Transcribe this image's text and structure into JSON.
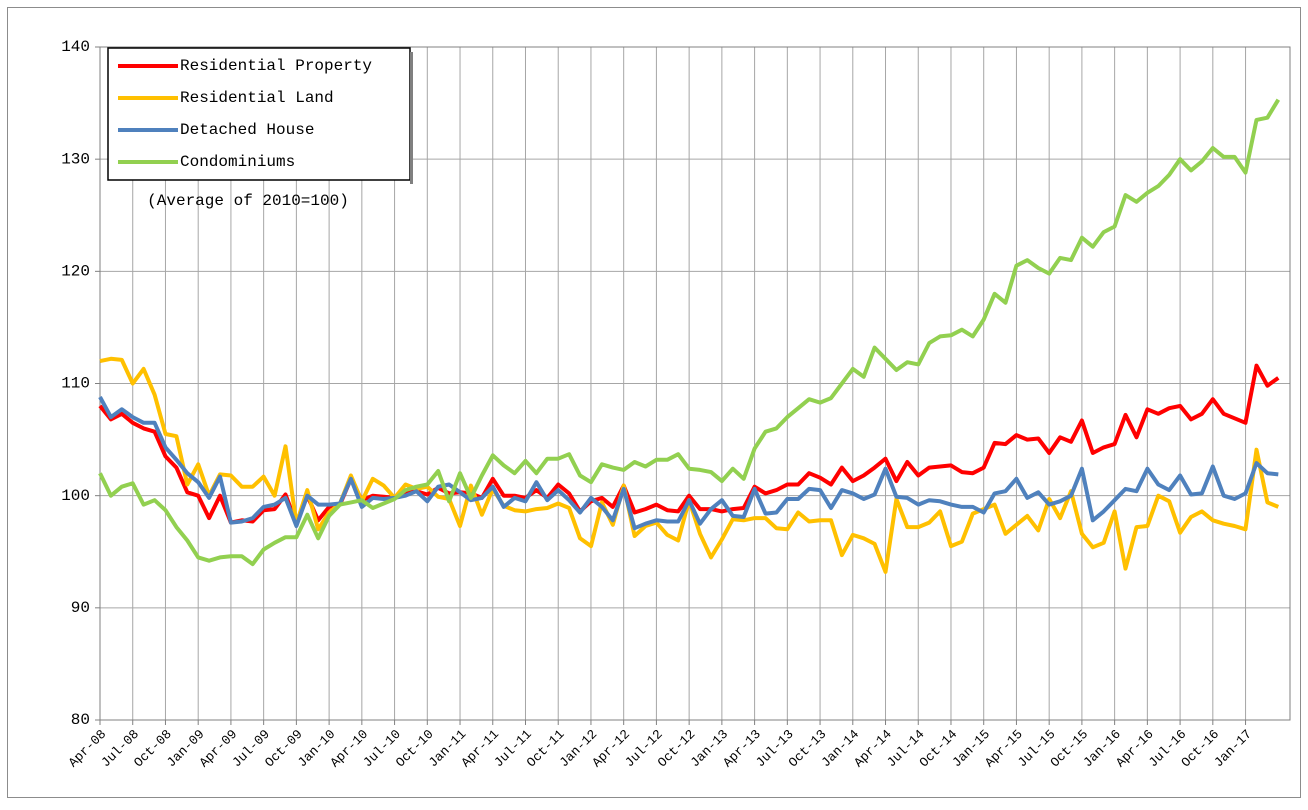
{
  "chart_data": {
    "type": "line",
    "annotations": [
      "(Average of 2010=100)"
    ],
    "categories": [
      "Apr-08",
      null,
      null,
      "Jul-08",
      null,
      null,
      "Oct-08",
      null,
      null,
      "Jan-09",
      null,
      null,
      "Apr-09",
      null,
      null,
      "Jul-09",
      null,
      null,
      "Oct-09",
      null,
      null,
      "Jan-10",
      null,
      null,
      "Apr-10",
      null,
      null,
      "Jul-10",
      null,
      null,
      "Oct-10",
      null,
      null,
      "Jan-11",
      null,
      null,
      "Apr-11",
      null,
      null,
      "Jul-11",
      null,
      null,
      "Oct-11",
      null,
      null,
      "Jan-12",
      null,
      null,
      "Apr-12",
      null,
      null,
      "Jul-12",
      null,
      null,
      "Oct-12",
      null,
      null,
      "Jan-13",
      null,
      null,
      "Apr-13",
      null,
      null,
      "Jul-13",
      null,
      null,
      "Oct-13",
      null,
      null,
      "Jan-14",
      null,
      null,
      "Apr-14",
      null,
      null,
      "Jul-14",
      null,
      null,
      "Oct-14",
      null,
      null,
      "Jan-15",
      null,
      null,
      "Apr-15",
      null,
      null,
      "Jul-15",
      null,
      null,
      "Oct-15",
      null,
      null,
      "Jan-16",
      null,
      null,
      "Apr-16",
      null,
      null,
      "Jul-16",
      null,
      null,
      "Oct-16",
      null,
      null,
      "Jan-17",
      null,
      null,
      null
    ],
    "series": [
      {
        "name": "Residential Property",
        "color": "#ff0000",
        "values": [
          108,
          106.8,
          107.3,
          106.5,
          106,
          105.7,
          103.5,
          102.5,
          100.3,
          100,
          98,
          100,
          97.6,
          97.8,
          97.7,
          98.7,
          98.8,
          100.1,
          97.5,
          100,
          97.8,
          99,
          99.2,
          101.5,
          99.6,
          100,
          99.9,
          99.8,
          100.3,
          100.4,
          100.1,
          100.7,
          100.2,
          100.3,
          100.2,
          99.8,
          101.5,
          100,
          100,
          99.8,
          100.5,
          99.8,
          101,
          100.2,
          98.6,
          99.5,
          99.8,
          99,
          100.9,
          98.5,
          98.8,
          99.2,
          98.7,
          98.6,
          100,
          98.8,
          98.8,
          98.6,
          98.8,
          98.9,
          100.8,
          100.2,
          100.5,
          101,
          101,
          102,
          101.6,
          101,
          102.5,
          101.3,
          101.8,
          102.5,
          103.3,
          101.3,
          103,
          101.8,
          102.5,
          102.6,
          102.7,
          102.1,
          102,
          102.5,
          104.7,
          104.6,
          105.4,
          105,
          105.1,
          103.8,
          105.2,
          104.8,
          106.7,
          103.8,
          104.3,
          104.6,
          107.2,
          105.2,
          107.7,
          107.3,
          107.8,
          108,
          106.8,
          107.3,
          108.6,
          107.3,
          106.9,
          106.5,
          111.6,
          109.8,
          110.5
        ]
      },
      {
        "name": "Residential Land",
        "color": "#ffc000",
        "values": [
          112,
          112.2,
          112.1,
          110,
          111.3,
          109,
          105.5,
          105.3,
          101,
          102.8,
          100,
          101.9,
          101.8,
          100.8,
          100.8,
          101.7,
          100,
          104.4,
          97.5,
          100.5,
          97,
          98.5,
          99.3,
          101.8,
          99.5,
          101.5,
          100.9,
          99.8,
          101,
          100.6,
          100.8,
          99.9,
          99.7,
          97.3,
          100.9,
          98.3,
          100.6,
          99.1,
          98.7,
          98.6,
          98.8,
          98.9,
          99.3,
          98.9,
          96.2,
          95.5,
          99.4,
          97.4,
          100.9,
          96.4,
          97.3,
          97.6,
          96.5,
          96,
          99.6,
          96.6,
          94.5,
          96.1,
          97.9,
          97.8,
          98,
          98,
          97.1,
          97,
          98.5,
          97.7,
          97.8,
          97.8,
          94.7,
          96.5,
          96.2,
          95.7,
          93.2,
          99.7,
          97.2,
          97.2,
          97.6,
          98.6,
          95.5,
          95.9,
          98.4,
          98.8,
          99.2,
          96.6,
          97.4,
          98.2,
          96.9,
          99.7,
          98,
          100.4,
          96.6,
          95.4,
          95.8,
          98.6,
          93.5,
          97.2,
          97.3,
          100,
          99.5,
          96.7,
          98.1,
          98.6,
          97.8,
          97.5,
          97.3,
          97,
          104.1,
          99.4,
          99
        ]
      },
      {
        "name": "Detached House",
        "color": "#4f81bd",
        "values": [
          108.8,
          107,
          107.7,
          107,
          106.5,
          106.5,
          104.3,
          103.2,
          102,
          101.2,
          99.8,
          101.7,
          97.6,
          97.7,
          98,
          99,
          99.2,
          99.8,
          97.3,
          100,
          99.2,
          99.2,
          99.3,
          101.5,
          99,
          99.8,
          99.7,
          99.8,
          100,
          100.4,
          99.5,
          100.8,
          101,
          100.3,
          99.6,
          99.8,
          100.8,
          99,
          99.8,
          99.5,
          101.2,
          99.6,
          100.5,
          99.6,
          98.5,
          99.8,
          99,
          97.8,
          100.6,
          97.1,
          97.5,
          97.8,
          97.7,
          97.7,
          99.6,
          97.5,
          98.8,
          99.6,
          98.2,
          98.1,
          100.6,
          98.4,
          98.5,
          99.7,
          99.7,
          100.6,
          100.5,
          98.9,
          100.5,
          100.2,
          99.7,
          100.1,
          102.4,
          99.9,
          99.8,
          99.2,
          99.6,
          99.5,
          99.2,
          99,
          99,
          98.5,
          100.2,
          100.4,
          101.5,
          99.8,
          100.3,
          99.2,
          99.5,
          100,
          102.4,
          97.8,
          98.6,
          99.6,
          100.6,
          100.4,
          102.4,
          101,
          100.5,
          101.8,
          100.1,
          100.2,
          102.6,
          100,
          99.7,
          100.2,
          102.9,
          102,
          101.9
        ]
      },
      {
        "name": "Condominiums",
        "color": "#92d050",
        "values": [
          102,
          100,
          100.8,
          101.1,
          99.2,
          99.6,
          98.7,
          97.2,
          96,
          94.5,
          94.2,
          94.5,
          94.6,
          94.6,
          93.9,
          95.2,
          95.8,
          96.3,
          96.3,
          98.3,
          96.2,
          98.2,
          99.2,
          99.4,
          99.6,
          98.9,
          99.3,
          99.7,
          100.5,
          100.8,
          101,
          102.2,
          99.5,
          102,
          99.8,
          101.8,
          103.6,
          102.7,
          102,
          103.1,
          102,
          103.3,
          103.3,
          103.7,
          101.8,
          101.2,
          102.8,
          102.5,
          102.3,
          103,
          102.6,
          103.2,
          103.2,
          103.7,
          102.4,
          102.3,
          102.1,
          101.3,
          102.4,
          101.5,
          104.2,
          105.7,
          106,
          107,
          107.8,
          108.6,
          108.3,
          108.7,
          110,
          111.3,
          110.6,
          113.2,
          112.2,
          111.2,
          111.9,
          111.7,
          113.6,
          114.2,
          114.3,
          114.8,
          114.2,
          115.7,
          118,
          117.2,
          120.5,
          121,
          120.3,
          119.8,
          121.2,
          121,
          123,
          122.2,
          123.5,
          124,
          126.8,
          126.2,
          127,
          127.6,
          128.6,
          130,
          129,
          129.8,
          131,
          130.2,
          130.2,
          128.8,
          133.5,
          133.7,
          135.3
        ]
      }
    ],
    "ylim": [
      80,
      140
    ],
    "yticks": [
      80,
      90,
      100,
      110,
      120,
      130,
      140
    ],
    "grid": true,
    "legend": "upper left"
  }
}
